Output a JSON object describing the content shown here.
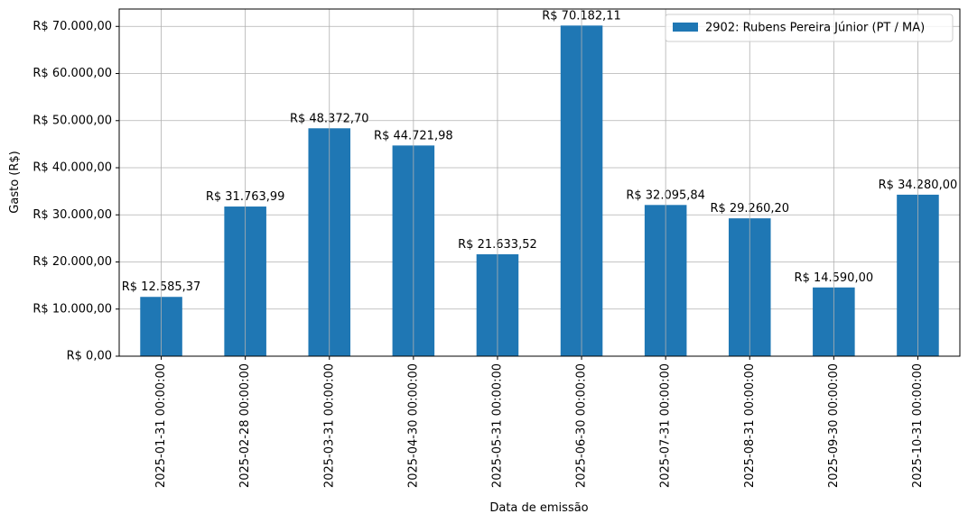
{
  "chart_data": {
    "type": "bar",
    "x_label": "Data de emissão",
    "y_label": "Gasto (R$)",
    "categories": [
      "2025-01-31 00:00:00",
      "2025-02-28 00:00:00",
      "2025-03-31 00:00:00",
      "2025-04-30 00:00:00",
      "2025-05-31 00:00:00",
      "2025-06-30 00:00:00",
      "2025-07-31 00:00:00",
      "2025-08-31 00:00:00",
      "2025-09-30 00:00:00",
      "2025-10-31 00:00:00"
    ],
    "series": [
      {
        "name": "2902: Rubens Pereira Júnior (PT / MA)",
        "color": "#1f77b4",
        "values": [
          12585.37,
          31763.99,
          48372.7,
          44721.98,
          21633.52,
          70182.11,
          32095.84,
          29260.2,
          14590.0,
          34280.0
        ],
        "value_labels": [
          "R$ 12.585,37",
          "R$ 31.763,99",
          "R$ 48.372,70",
          "R$ 44.721,98",
          "R$ 21.633,52",
          "R$ 70.182,11",
          "R$ 32.095,84",
          "R$ 29.260,20",
          "R$ 14.590,00",
          "R$ 34.280,00"
        ]
      }
    ],
    "ylim": [
      0,
      73691.22
    ],
    "yticks": [
      {
        "value": 0,
        "label": "R$ 0,00"
      },
      {
        "value": 10000,
        "label": "R$ 10.000,00"
      },
      {
        "value": 20000,
        "label": "R$ 20.000,00"
      },
      {
        "value": 30000,
        "label": "R$ 30.000,00"
      },
      {
        "value": 40000,
        "label": "R$ 40.000,00"
      },
      {
        "value": 50000,
        "label": "R$ 50.000,00"
      },
      {
        "value": 60000,
        "label": "R$ 60.000,00"
      },
      {
        "value": 70000,
        "label": "R$ 70.000,00"
      }
    ],
    "grid": true,
    "legend": "upper right"
  }
}
